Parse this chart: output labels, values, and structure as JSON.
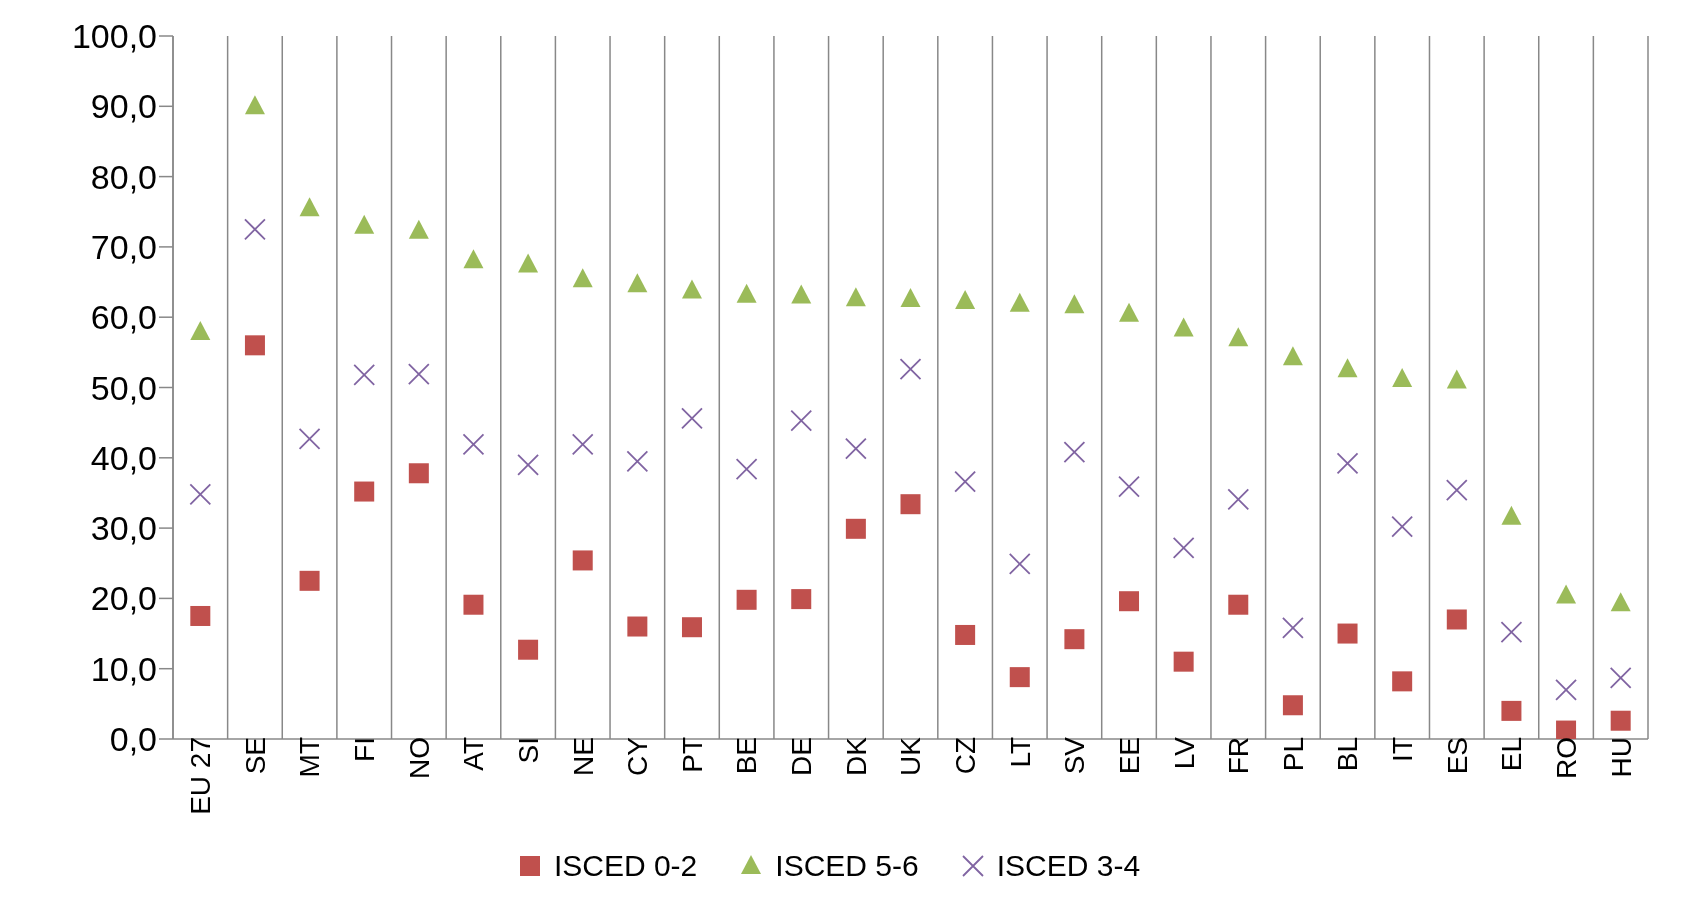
{
  "chart_data": {
    "type": "scatter",
    "categories": [
      "EU 27",
      "SE",
      "MT",
      "FI",
      "NO",
      "AT",
      "SI",
      "NE",
      "CY",
      "PT",
      "BE",
      "DE",
      "DK",
      "UK",
      "CZ",
      "LT",
      "SV",
      "EE",
      "LV",
      "FR",
      "PL",
      "BL",
      "IT",
      "ES",
      "EL",
      "RO",
      "HU"
    ],
    "series": [
      {
        "name": "ISCED 0-2",
        "color": "#c0504d",
        "marker": "square",
        "values": [
          17.5,
          56.0,
          22.5,
          35.2,
          37.8,
          19.1,
          12.7,
          25.4,
          16.0,
          15.9,
          19.8,
          19.9,
          29.9,
          33.4,
          14.8,
          8.8,
          14.2,
          19.6,
          11.0,
          19.1,
          4.8,
          15.0,
          8.2,
          17.0,
          4.0,
          1.2,
          2.6
        ]
      },
      {
        "name": "ISCED 5-6",
        "color": "#9bbb59",
        "marker": "triangle",
        "values": [
          57.9,
          90.0,
          75.5,
          73.0,
          72.3,
          68.1,
          67.5,
          65.4,
          64.7,
          63.8,
          63.2,
          63.1,
          62.7,
          62.6,
          62.3,
          61.9,
          61.7,
          60.5,
          58.4,
          57.0,
          54.3,
          52.6,
          51.2,
          51.0,
          31.6,
          20.4,
          19.3
        ]
      },
      {
        "name": "ISCED 3-4",
        "color": "#8064a2",
        "marker": "cross",
        "values": [
          34.8,
          72.5,
          42.7,
          51.8,
          51.9,
          41.9,
          39.0,
          41.9,
          39.5,
          45.6,
          38.4,
          45.3,
          41.3,
          52.6,
          36.6,
          24.9,
          40.8,
          35.9,
          27.2,
          34.1,
          15.8,
          39.2,
          30.2,
          35.4,
          15.2,
          7.0,
          8.7
        ]
      }
    ],
    "ylim": [
      0,
      100
    ],
    "yticks": [
      {
        "value": 0,
        "label": "0,0"
      },
      {
        "value": 10,
        "label": "10,0"
      },
      {
        "value": 20,
        "label": "20,0"
      },
      {
        "value": 30,
        "label": "30,0"
      },
      {
        "value": 40,
        "label": "40,0"
      },
      {
        "value": 50,
        "label": "50,0"
      },
      {
        "value": 60,
        "label": "60,0"
      },
      {
        "value": 70,
        "label": "70,0"
      },
      {
        "value": 80,
        "label": "80,0"
      },
      {
        "value": 90,
        "label": "90,0"
      },
      {
        "value": 100,
        "label": "100,0"
      }
    ],
    "grid": "x",
    "legend": "bottom"
  }
}
